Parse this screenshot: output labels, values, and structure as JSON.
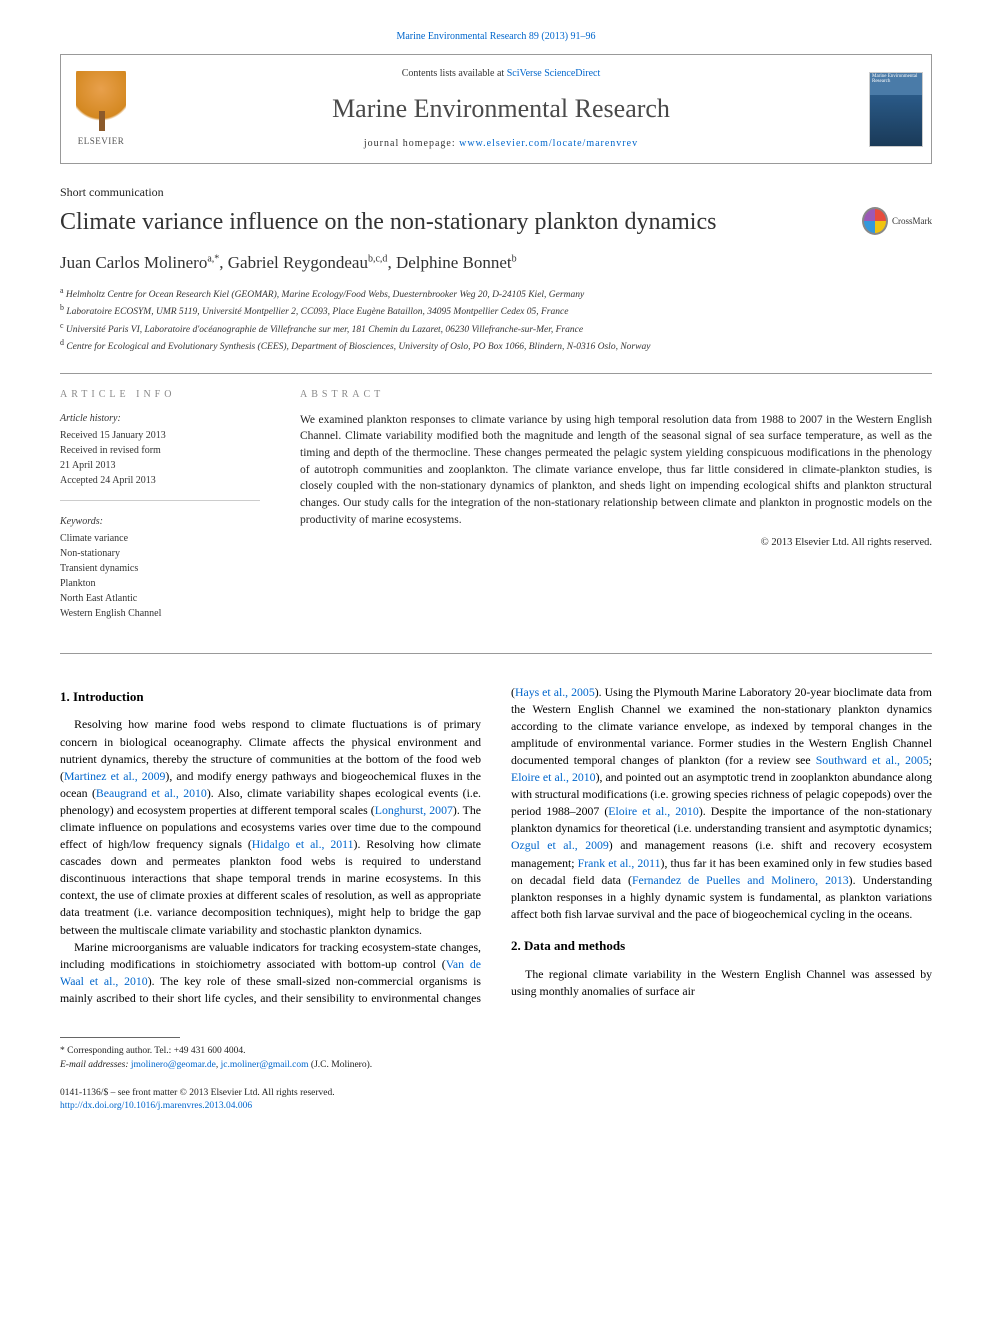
{
  "colors": {
    "link": "#0066cc",
    "text": "#222",
    "muted": "#888",
    "rule": "#999"
  },
  "header": {
    "citation": "Marine Environmental Research 89 (2013) 91–96",
    "contents_prefix": "Contents lists available at ",
    "contents_link": "SciVerse ScienceDirect",
    "journal": "Marine Environmental Research",
    "homepage_prefix": "journal homepage: ",
    "homepage_link": "www.elsevier.com/locate/marenvrev",
    "publisher": "ELSEVIER",
    "cover_text": "Marine Environmental Research"
  },
  "article": {
    "type": "Short communication",
    "title": "Climate variance influence on the non-stationary plankton dynamics",
    "crossmark": "CrossMark",
    "authors_html": "Juan Carlos Molinero",
    "authors": [
      {
        "name": "Juan Carlos Molinero",
        "marks": "a,*"
      },
      {
        "name": "Gabriel Reygondeau",
        "marks": "b,c,d"
      },
      {
        "name": "Delphine Bonnet",
        "marks": "b"
      }
    ],
    "affiliations": [
      {
        "mark": "a",
        "text": "Helmholtz Centre for Ocean Research Kiel (GEOMAR), Marine Ecology/Food Webs, Duesternbrooker Weg 20, D-24105 Kiel, Germany"
      },
      {
        "mark": "b",
        "text": "Laboratoire ECOSYM, UMR 5119, Université Montpellier 2, CC093, Place Eugène Bataillon, 34095 Montpellier Cedex 05, France"
      },
      {
        "mark": "c",
        "text": "Université Paris VI, Laboratoire d'océanographie de Villefranche sur mer, 181 Chemin du Lazaret, 06230 Villefranche-sur-Mer, France"
      },
      {
        "mark": "d",
        "text": "Centre for Ecological and Evolutionary Synthesis (CEES), Department of Biosciences, University of Oslo, PO Box 1066, Blindern, N-0316 Oslo, Norway"
      }
    ]
  },
  "info": {
    "label": "ARTICLE INFO",
    "history_label": "Article history:",
    "history": [
      "Received 15 January 2013",
      "Received in revised form",
      "21 April 2013",
      "Accepted 24 April 2013"
    ],
    "keywords_label": "Keywords:",
    "keywords": [
      "Climate variance",
      "Non-stationary",
      "Transient dynamics",
      "Plankton",
      "North East Atlantic",
      "Western English Channel"
    ]
  },
  "abstract": {
    "label": "ABSTRACT",
    "text": "We examined plankton responses to climate variance by using high temporal resolution data from 1988 to 2007 in the Western English Channel. Climate variability modified both the magnitude and length of the seasonal signal of sea surface temperature, as well as the timing and depth of the thermocline. These changes permeated the pelagic system yielding conspicuous modifications in the phenology of autotroph communities and zooplankton. The climate variance envelope, thus far little considered in climate-plankton studies, is closely coupled with the non-stationary dynamics of plankton, and sheds light on impending ecological shifts and plankton structural changes. Our study calls for the integration of the non-stationary relationship between climate and plankton in prognostic models on the productivity of marine ecosystems.",
    "copyright": "© 2013 Elsevier Ltd. All rights reserved."
  },
  "body": {
    "s1_heading": "1. Introduction",
    "s1_p1_a": "Resolving how marine food webs respond to climate fluctuations is of primary concern in biological oceanography. Climate affects the physical environment and nutrient dynamics, thereby the structure of communities at the bottom of the food web (",
    "s1_p1_c1": "Martinez et al., 2009",
    "s1_p1_b": "), and modify energy pathways and biogeochemical fluxes in the ocean (",
    "s1_p1_c2": "Beaugrand et al., 2010",
    "s1_p1_c": "). Also, climate variability shapes ecological events (i.e. phenology) and ecosystem properties at different temporal scales (",
    "s1_p1_c3": "Longhurst, 2007",
    "s1_p1_d": "). The climate influence on populations and ecosystems varies over time due to the compound effect of high/low frequency signals (",
    "s1_p1_c4": "Hidalgo et al., 2011",
    "s1_p1_e": "). Resolving how climate cascades down and permeates plankton food webs is required to understand discontinuous interactions that shape temporal trends in marine ecosystems. In this context, the use of climate proxies at different scales of resolution, as well as appropriate data treatment (i.e. variance decomposition techniques), might help to bridge the gap between the multiscale climate variability and stochastic plankton dynamics.",
    "s1_p2_a": "Marine microorganisms are valuable indicators for tracking ecosystem-state changes, including modifications in stoichiometry associated with bottom-up control (",
    "s1_p2_c1": "Van de Waal et al., 2010",
    "s1_p2_b": "). The key role of these small-sized non-commercial organisms is mainly ascribed to their short life cycles, and their sensibility to environmental changes (",
    "s1_p2_c2": "Hays et al., 2005",
    "s1_p2_c": "). Using the Plymouth Marine Laboratory 20-year bioclimate data from the Western English Channel we examined the non-stationary plankton dynamics according to the climate variance envelope, as indexed by temporal changes in the amplitude of environmental variance. Former studies in the Western English Channel documented temporal changes of plankton (for a review see ",
    "s1_p2_c3": "Southward et al., 2005",
    "s1_p2_d": "; ",
    "s1_p2_c4": "Eloire et al., 2010",
    "s1_p2_e": "), and pointed out an asymptotic trend in zooplankton abundance along with structural modifications (i.e. growing species richness of pelagic copepods) over the period 1988–2007 (",
    "s1_p2_c5": "Eloire et al., 2010",
    "s1_p2_f": "). Despite the importance of the non-stationary plankton dynamics for theoretical (i.e. understanding transient and asymptotic dynamics; ",
    "s1_p2_c6": "Ozgul et al., 2009",
    "s1_p2_g": ") and management reasons (i.e. shift and recovery ecosystem management; ",
    "s1_p2_c7": "Frank et al., 2011",
    "s1_p2_h": "), thus far it has been examined only in few studies based on decadal field data (",
    "s1_p2_c8": "Fernandez de Puelles and Molinero, 2013",
    "s1_p2_i": "). Understanding plankton responses in a highly dynamic system is fundamental, as plankton variations affect both fish larvae survival and the pace of biogeochemical cycling in the oceans.",
    "s2_heading": "2. Data and methods",
    "s2_p1": "The regional climate variability in the Western English Channel was assessed by using monthly anomalies of surface air"
  },
  "footnotes": {
    "corr_label": "* Corresponding author. Tel.: ",
    "corr_tel": "+49 431 600 4004.",
    "email_label": "E-mail addresses: ",
    "email1": "jmolinero@geomar.de",
    "email_sep": ", ",
    "email2": "jc.moliner@gmail.com",
    "email_suffix": " (J.C. Molinero)."
  },
  "bottom": {
    "issn_line": "0141-1136/$ – see front matter © 2013 Elsevier Ltd. All rights reserved.",
    "doi": "http://dx.doi.org/10.1016/j.marenvres.2013.04.006"
  }
}
